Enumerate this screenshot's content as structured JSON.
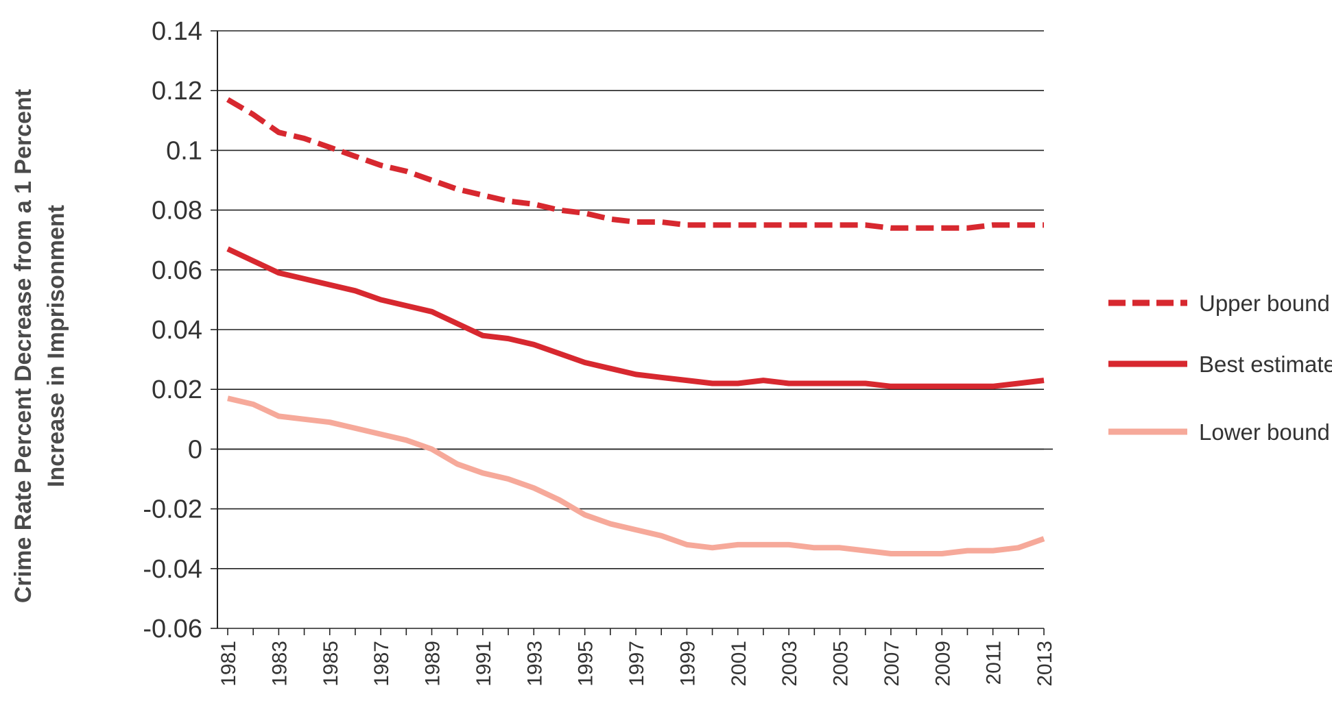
{
  "chart_data": {
    "type": "line",
    "title": "",
    "xlabel": "",
    "ylabel_lines": [
      "Crime Rate Percent Decrease from a 1 Percent",
      "Increase in Imprisonment"
    ],
    "ylim": [
      -0.06,
      0.14
    ],
    "yticks": [
      -0.06,
      -0.04,
      -0.02,
      0,
      0.02,
      0.04,
      0.06,
      0.08,
      0.1,
      0.12,
      0.14
    ],
    "ytick_labels": [
      "-0.06",
      "-0.04",
      "-0.02",
      "0",
      "0.02",
      "0.04",
      "0.06",
      "0.08",
      "0.1",
      "0.12",
      "0.14"
    ],
    "x": [
      1981,
      1982,
      1983,
      1984,
      1985,
      1986,
      1987,
      1988,
      1989,
      1990,
      1991,
      1992,
      1993,
      1994,
      1995,
      1996,
      1997,
      1998,
      1999,
      2000,
      2001,
      2002,
      2003,
      2004,
      2005,
      2006,
      2007,
      2008,
      2009,
      2010,
      2011,
      2012,
      2013
    ],
    "xtick_labels": [
      "1981",
      "1983",
      "1985",
      "1987",
      "1989",
      "1991",
      "1993",
      "1995",
      "1997",
      "1999",
      "2001",
      "2003",
      "2005",
      "2007",
      "2009",
      "2011",
      "2013"
    ],
    "grid": "horizontal",
    "legend_position": "right",
    "series": [
      {
        "name": "Upper bound",
        "color": "#d7282f",
        "style": "dashed",
        "values": [
          0.117,
          0.112,
          0.106,
          0.104,
          0.101,
          0.098,
          0.095,
          0.093,
          0.09,
          0.087,
          0.085,
          0.083,
          0.082,
          0.08,
          0.079,
          0.077,
          0.076,
          0.076,
          0.075,
          0.075,
          0.075,
          0.075,
          0.075,
          0.075,
          0.075,
          0.075,
          0.074,
          0.074,
          0.074,
          0.074,
          0.075,
          0.075,
          0.075
        ]
      },
      {
        "name": "Best estimate",
        "color": "#d7282f",
        "style": "solid",
        "values": [
          0.067,
          0.063,
          0.059,
          0.057,
          0.055,
          0.053,
          0.05,
          0.048,
          0.046,
          0.042,
          0.038,
          0.037,
          0.035,
          0.032,
          0.029,
          0.027,
          0.025,
          0.024,
          0.023,
          0.022,
          0.022,
          0.023,
          0.022,
          0.022,
          0.022,
          0.022,
          0.021,
          0.021,
          0.021,
          0.021,
          0.021,
          0.022,
          0.023
        ]
      },
      {
        "name": "Lower bound",
        "color": "#f6a99a",
        "style": "solid",
        "values": [
          0.017,
          0.015,
          0.011,
          0.01,
          0.009,
          0.007,
          0.005,
          0.003,
          0.0,
          -0.005,
          -0.008,
          -0.01,
          -0.013,
          -0.017,
          -0.022,
          -0.025,
          -0.027,
          -0.029,
          -0.032,
          -0.033,
          -0.032,
          -0.032,
          -0.032,
          -0.033,
          -0.033,
          -0.034,
          -0.035,
          -0.035,
          -0.035,
          -0.034,
          -0.034,
          -0.033,
          -0.03
        ]
      }
    ]
  }
}
